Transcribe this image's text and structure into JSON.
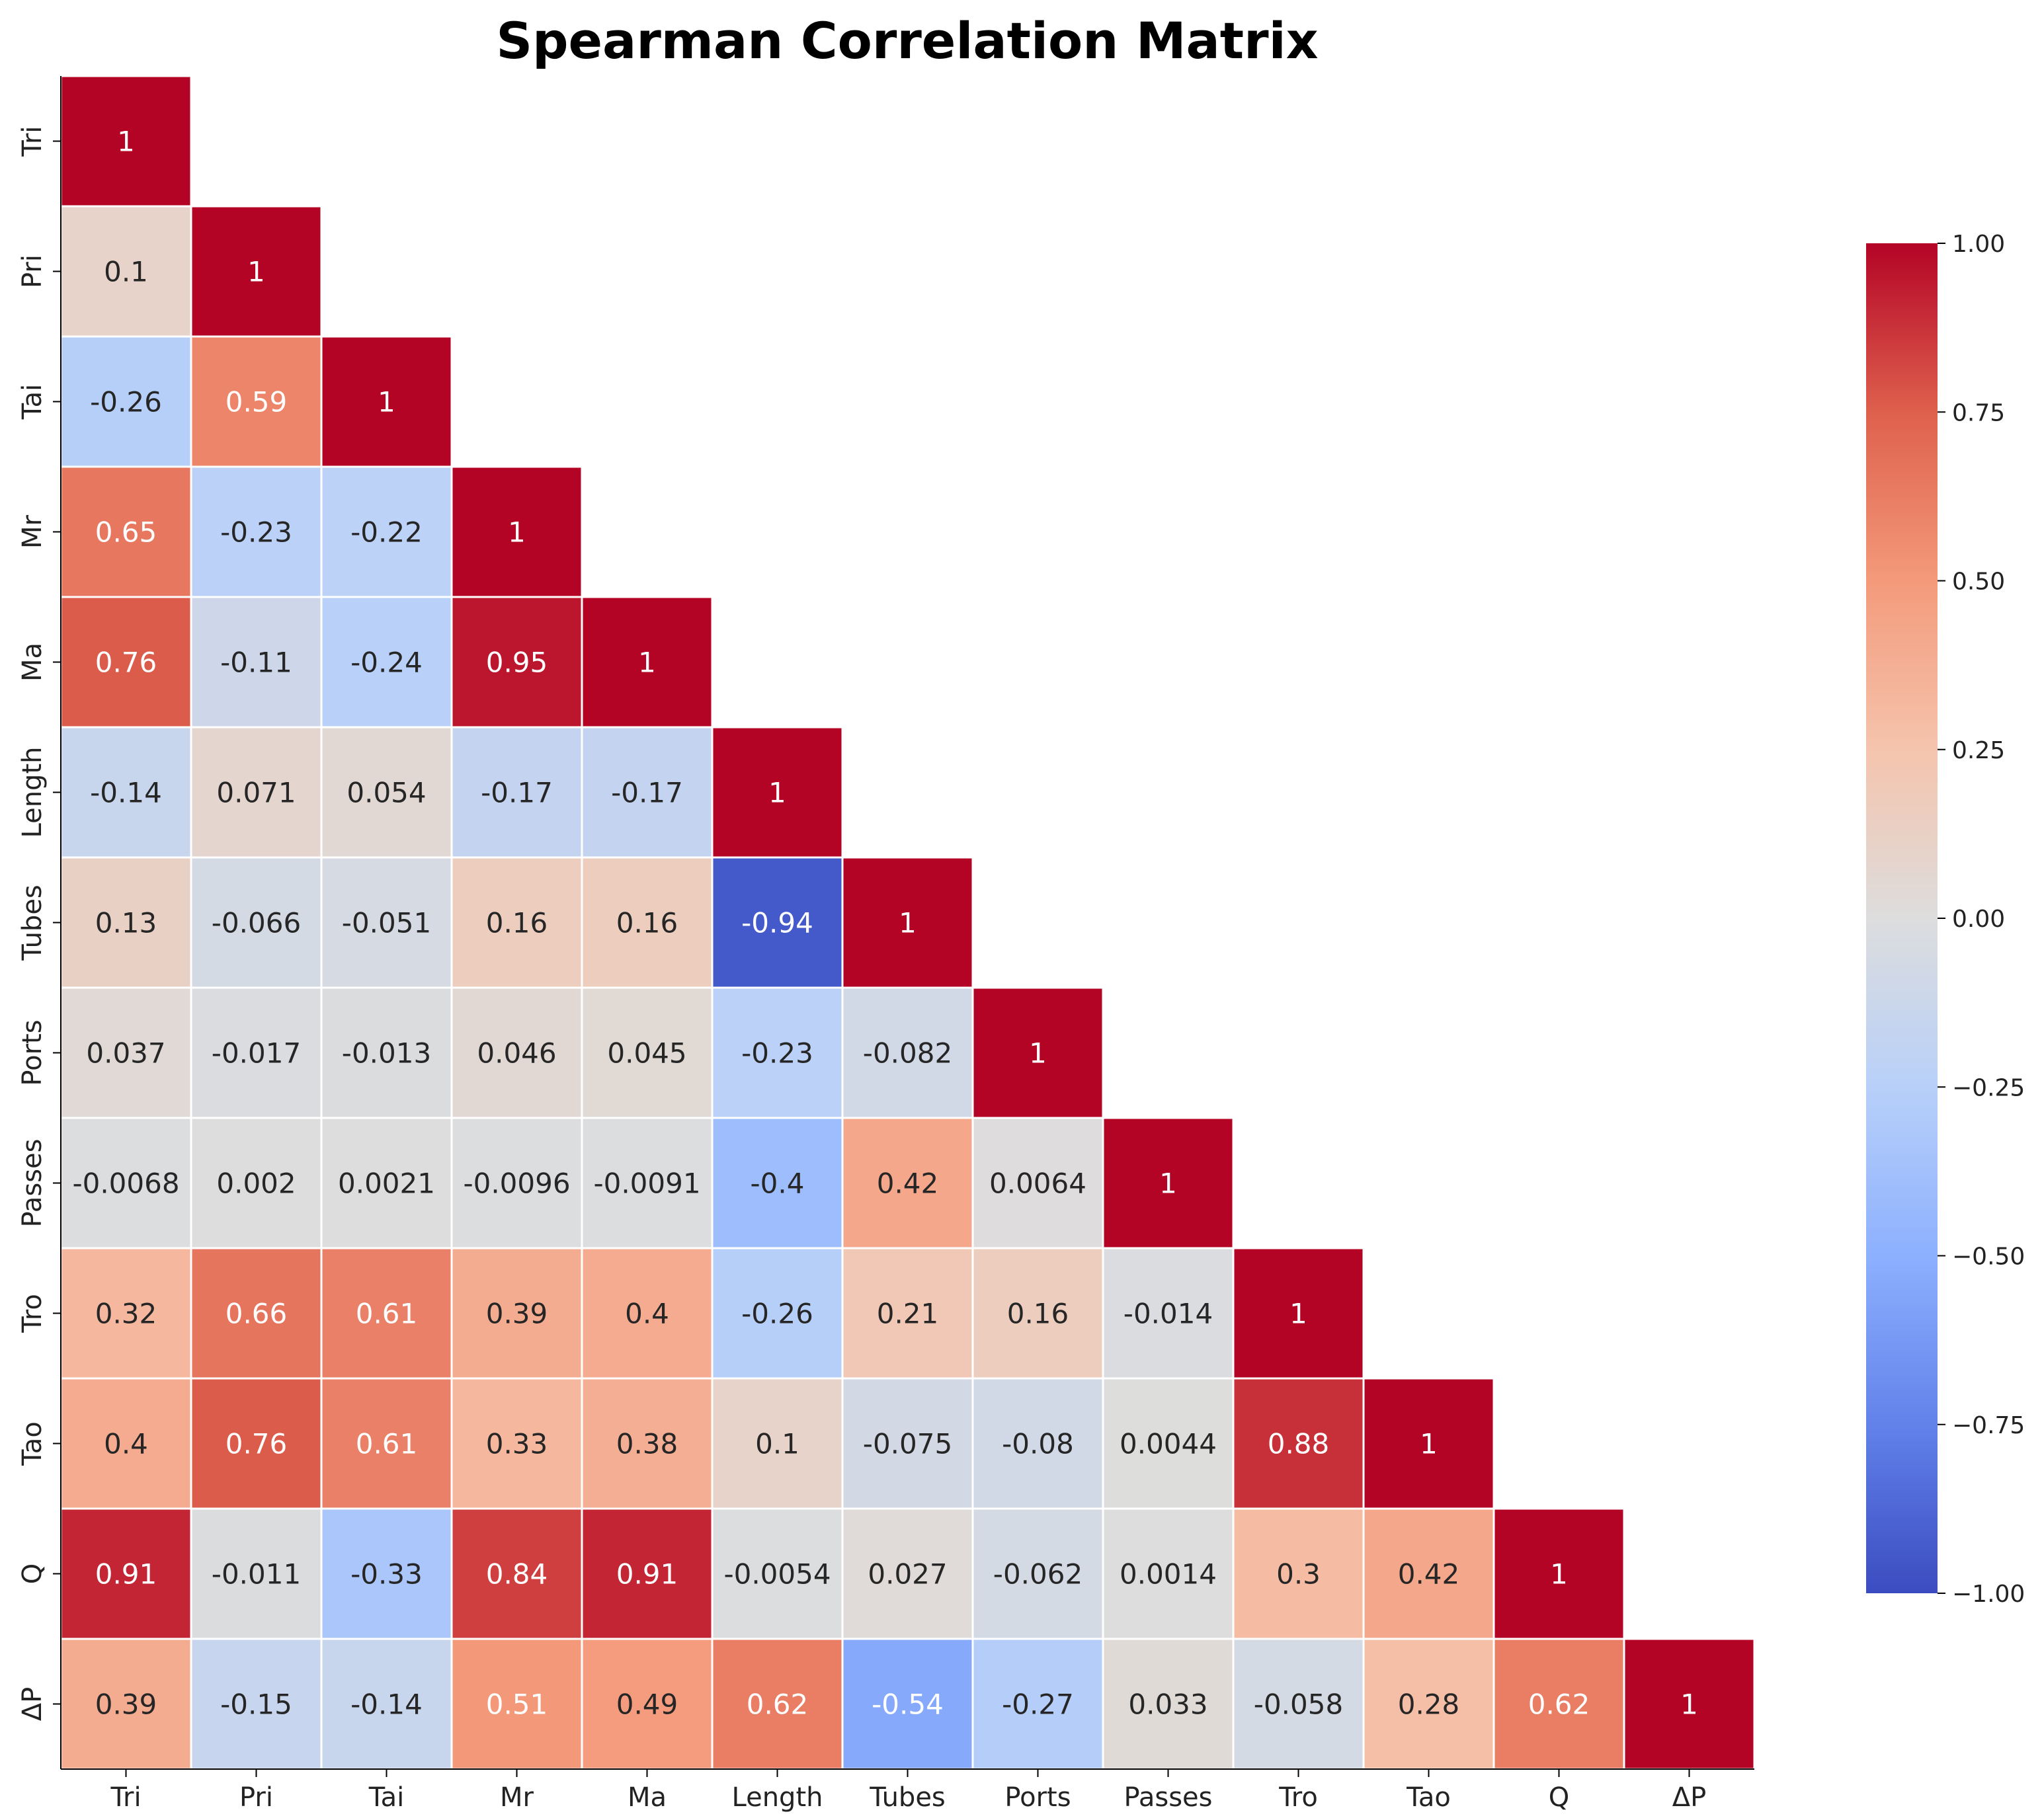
{
  "chart_data": {
    "type": "heatmap",
    "title": "Spearman Correlation Matrix",
    "variables": [
      "Tri",
      "Pri",
      "Tai",
      "Mr",
      "Ma",
      "Length",
      "Tubes",
      "Ports",
      "Passes",
      "Tro",
      "Tao",
      "Q",
      "ΔP"
    ],
    "matrix": [
      [
        "1"
      ],
      [
        "0.1",
        "1"
      ],
      [
        "-0.26",
        "0.59",
        "1"
      ],
      [
        "0.65",
        "-0.23",
        "-0.22",
        "1"
      ],
      [
        "0.76",
        "-0.11",
        "-0.24",
        "0.95",
        "1"
      ],
      [
        "-0.14",
        "0.071",
        "0.054",
        "-0.17",
        "-0.17",
        "1"
      ],
      [
        "0.13",
        "-0.066",
        "-0.051",
        "0.16",
        "0.16",
        "-0.94",
        "1"
      ],
      [
        "0.037",
        "-0.017",
        "-0.013",
        "0.046",
        "0.045",
        "-0.23",
        "-0.082",
        "1"
      ],
      [
        "-0.0068",
        "0.002",
        "0.0021",
        "-0.0096",
        "-0.0091",
        "-0.4",
        "0.42",
        "0.0064",
        "1"
      ],
      [
        "0.32",
        "0.66",
        "0.61",
        "0.39",
        "0.4",
        "-0.26",
        "0.21",
        "0.16",
        "-0.014",
        "1"
      ],
      [
        "0.4",
        "0.76",
        "0.61",
        "0.33",
        "0.38",
        "0.1",
        "-0.075",
        "-0.08",
        "0.0044",
        "0.88",
        "1"
      ],
      [
        "0.91",
        "-0.011",
        "-0.33",
        "0.84",
        "0.91",
        "-0.0054",
        "0.027",
        "-0.062",
        "0.0014",
        "0.3",
        "0.42",
        "1"
      ],
      [
        "0.39",
        "-0.15",
        "-0.14",
        "0.51",
        "0.49",
        "0.62",
        "-0.54",
        "-0.27",
        "0.033",
        "-0.058",
        "0.28",
        "0.62",
        "1"
      ]
    ],
    "colorbar": {
      "range": [
        -1,
        1
      ],
      "ticks": [
        "1.00",
        "0.75",
        "0.50",
        "0.25",
        "0.00",
        "−0.25",
        "−0.50",
        "−0.75",
        "−1.00"
      ],
      "tick_values": [
        1,
        0.75,
        0.5,
        0.25,
        0,
        -0.25,
        -0.5,
        -0.75,
        -1
      ],
      "colormap": "coolwarm",
      "low_color": "#3b4cc0",
      "mid_color": "#dddddd",
      "high_color": "#b40426"
    },
    "mask": "upper-triangle"
  }
}
